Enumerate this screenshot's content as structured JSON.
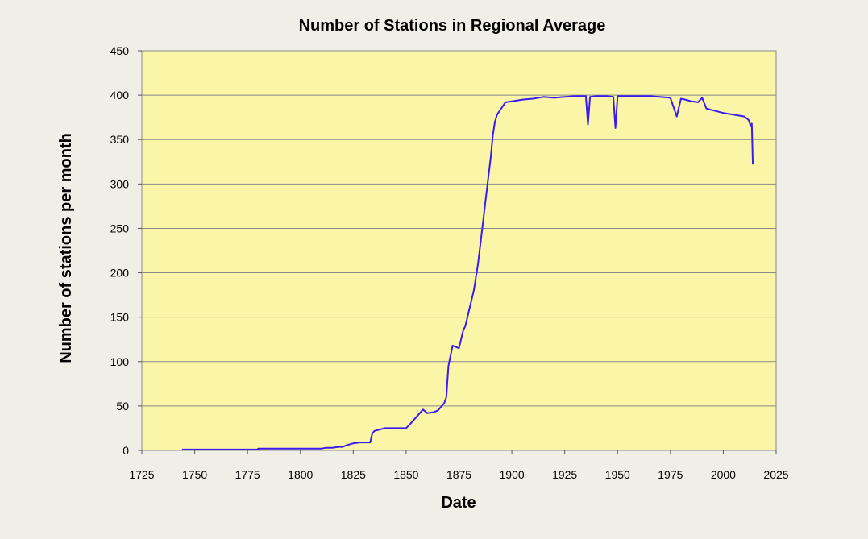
{
  "chart_data": {
    "type": "line",
    "title": "Number of Stations in Regional Average",
    "xlabel": "Date",
    "ylabel": "Number of stations per month",
    "xlim": [
      1725,
      2025
    ],
    "ylim": [
      0,
      450
    ],
    "xticks": [
      1725,
      1750,
      1775,
      1800,
      1825,
      1850,
      1875,
      1900,
      1925,
      1950,
      1975,
      2000,
      2025
    ],
    "yticks": [
      0,
      50,
      100,
      150,
      200,
      250,
      300,
      350,
      400,
      450
    ],
    "grid": "horizontal",
    "legend": "none",
    "colors": {
      "line": "#3b1cf0",
      "plot_bg": "#fbf5a8",
      "page_bg": "#f0efe7"
    },
    "series": [
      {
        "x": [
          1744,
          1780,
          1780,
          1810,
          1812,
          1815,
          1818,
          1820,
          1822,
          1825,
          1828,
          1833,
          1834,
          1835,
          1840,
          1845,
          1850,
          1852,
          1855,
          1858,
          1860,
          1863,
          1865,
          1868,
          1869,
          1870,
          1872,
          1875,
          1877,
          1878,
          1880,
          1882,
          1884,
          1886,
          1888,
          1890,
          1891,
          1892,
          1893,
          1895,
          1897,
          1900,
          1905,
          1910,
          1915,
          1920,
          1925,
          1930,
          1935,
          1936,
          1937,
          1940,
          1945,
          1948,
          1949,
          1950,
          1951,
          1955,
          1960,
          1965,
          1970,
          1975,
          1978,
          1980,
          1982,
          1985,
          1988,
          1990,
          1992,
          1995,
          2000,
          2005,
          2010,
          2012,
          2013,
          2013.5,
          2014
        ],
        "y": [
          1,
          1,
          2,
          2,
          3,
          3,
          4,
          4,
          6,
          8,
          9,
          9,
          19,
          22,
          25,
          25,
          25,
          30,
          38,
          46,
          42,
          43,
          45,
          53,
          60,
          95,
          118,
          115,
          135,
          140,
          160,
          180,
          210,
          250,
          290,
          330,
          355,
          370,
          378,
          385,
          392,
          393,
          395,
          396,
          398,
          397,
          398,
          399,
          399,
          367,
          398,
          399,
          399,
          398,
          363,
          399,
          399,
          399,
          399,
          399,
          398,
          397,
          376,
          396,
          395,
          393,
          392,
          397,
          385,
          383,
          380,
          378,
          376,
          372,
          365,
          368,
          322
        ]
      }
    ]
  }
}
